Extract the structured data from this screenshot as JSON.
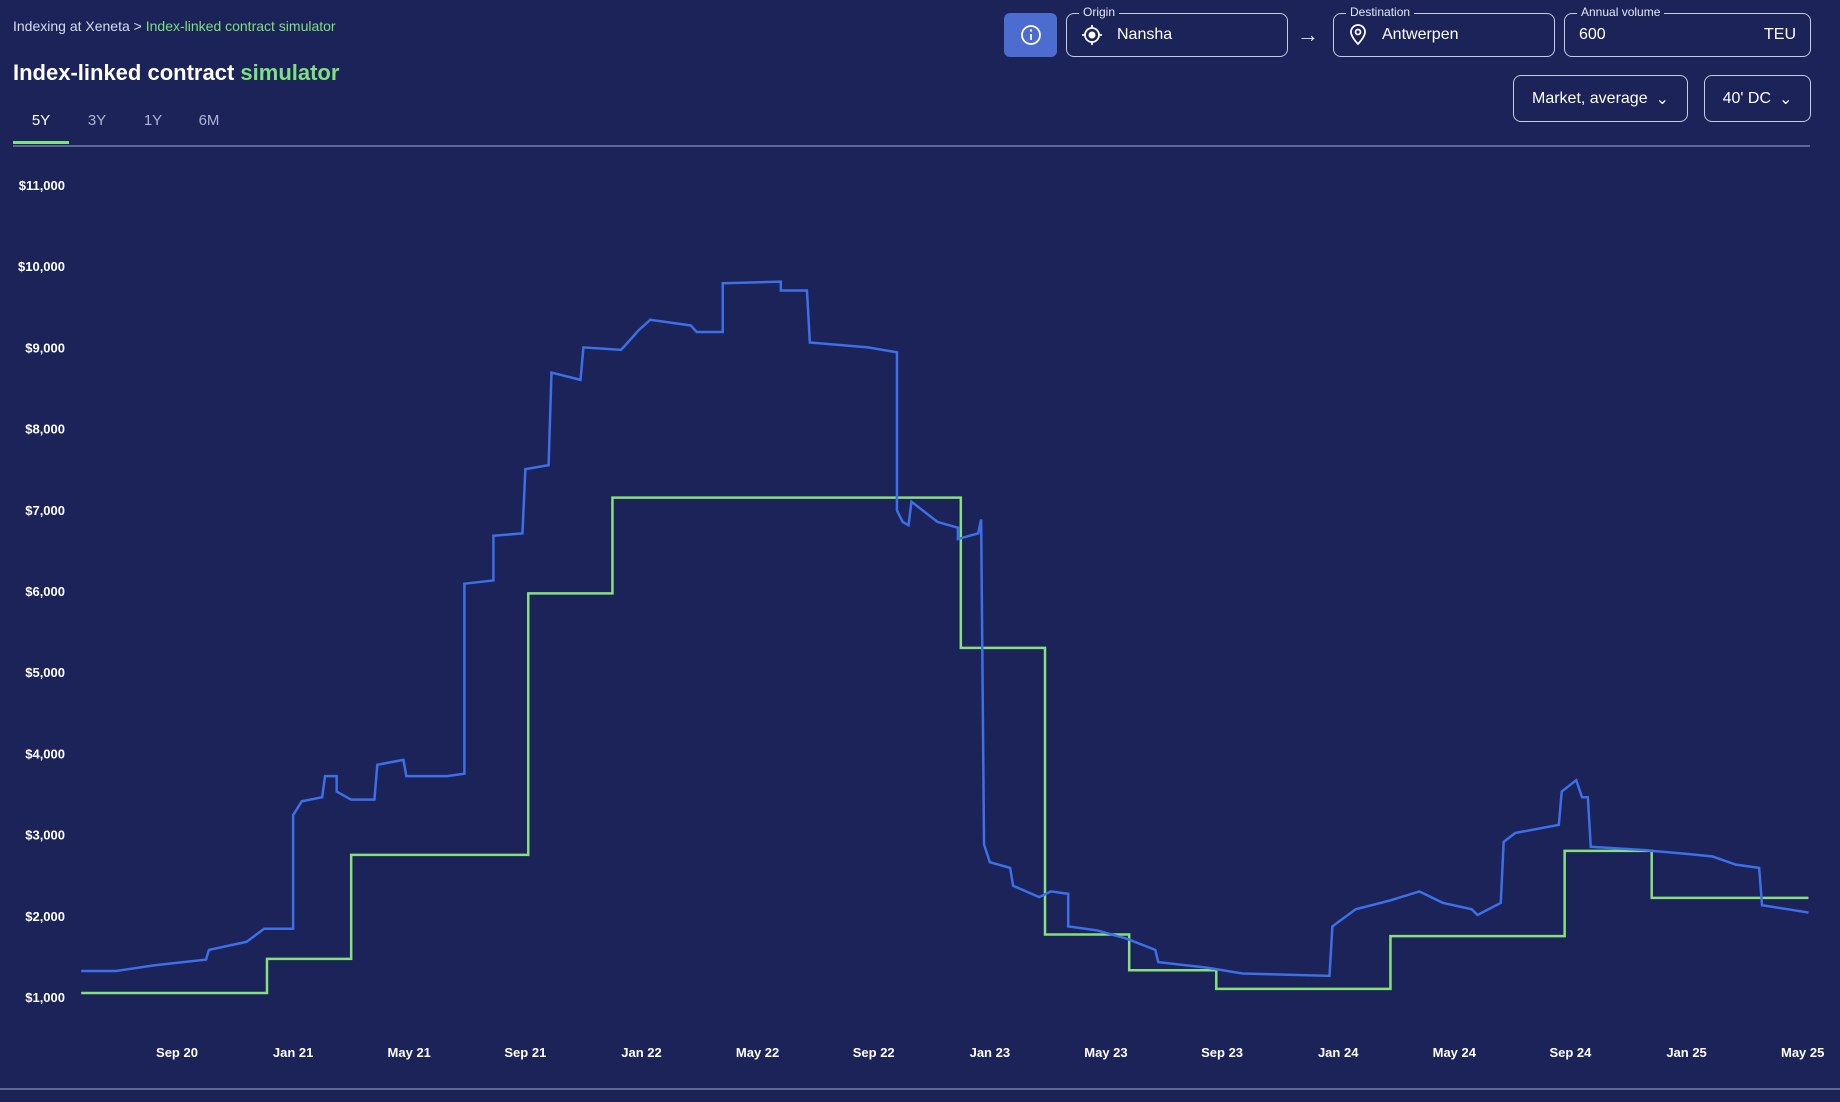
{
  "breadcrumb": {
    "parent": "Indexing at Xeneta",
    "separator": ">",
    "current": "Index-linked contract simulator"
  },
  "title": {
    "main": "Index-linked contract",
    "accent": "simulator"
  },
  "tabs": [
    {
      "label": "5Y"
    },
    {
      "label": "3Y"
    },
    {
      "label": "1Y"
    },
    {
      "label": "6M"
    }
  ],
  "filters": {
    "origin": {
      "label": "Origin",
      "value": "Nansha"
    },
    "destination": {
      "label": "Destination",
      "value": "Antwerpen"
    },
    "volume": {
      "label": "Annual volume",
      "value": "600",
      "unit": "TEU"
    },
    "rate_type": "Market, average",
    "container": "40' DC"
  },
  "colors": {
    "market": "#3d6fe6",
    "contract": "#86e07c",
    "background": "#1b2358"
  },
  "chart_data": {
    "type": "line",
    "x_unit": "months since Sep 2020",
    "xlim": [
      -3.3,
      56.2
    ],
    "ylim": [
      1000,
      11000
    ],
    "yticks": [
      1000,
      2000,
      3000,
      4000,
      5000,
      6000,
      7000,
      8000,
      9000,
      10000,
      11000
    ],
    "ytick_labels": [
      "$1,000",
      "$2,000",
      "$3,000",
      "$4,000",
      "$5,000",
      "$6,000",
      "$7,000",
      "$8,000",
      "$9,000",
      "$10,000",
      "$11,000"
    ],
    "xticks": [
      0,
      4,
      8,
      12,
      16,
      20,
      24,
      28,
      32,
      36,
      40,
      44,
      48,
      52,
      56
    ],
    "xtick_labels": [
      "Sep 20",
      "Jan 21",
      "May 21",
      "Sep 21",
      "Jan 22",
      "May 22",
      "Sep 22",
      "Jan 23",
      "May 23",
      "Sep 23",
      "Jan 24",
      "May 24",
      "Sep 24",
      "Jan 25",
      "May 25"
    ],
    "grid": false,
    "series": [
      {
        "name": "Market, average",
        "color": "#3d6fe6",
        "points": [
          [
            -3.3,
            1320
          ],
          [
            -2.1,
            1320
          ],
          [
            -0.8,
            1390
          ],
          [
            1.0,
            1460
          ],
          [
            1.1,
            1580
          ],
          [
            2.4,
            1680
          ],
          [
            3.0,
            1840
          ],
          [
            4.0,
            1840
          ],
          [
            4.0,
            3240
          ],
          [
            4.3,
            3410
          ],
          [
            5.0,
            3460
          ],
          [
            5.1,
            3720
          ],
          [
            5.5,
            3720
          ],
          [
            5.5,
            3530
          ],
          [
            6.0,
            3430
          ],
          [
            6.8,
            3430
          ],
          [
            6.9,
            3860
          ],
          [
            7.8,
            3920
          ],
          [
            7.9,
            3720
          ],
          [
            9.3,
            3720
          ],
          [
            9.9,
            3750
          ],
          [
            9.9,
            6090
          ],
          [
            10.9,
            6130
          ],
          [
            10.9,
            6680
          ],
          [
            11.9,
            6710
          ],
          [
            12.0,
            7500
          ],
          [
            12.8,
            7550
          ],
          [
            12.9,
            8690
          ],
          [
            13.9,
            8600
          ],
          [
            14.0,
            9000
          ],
          [
            15.3,
            8970
          ],
          [
            15.9,
            9210
          ],
          [
            16.3,
            9340
          ],
          [
            17.7,
            9270
          ],
          [
            17.9,
            9190
          ],
          [
            18.8,
            9190
          ],
          [
            18.8,
            9790
          ],
          [
            19.8,
            9800
          ],
          [
            20.8,
            9810
          ],
          [
            20.8,
            9700
          ],
          [
            21.7,
            9700
          ],
          [
            21.8,
            9060
          ],
          [
            23.8,
            9000
          ],
          [
            24.8,
            8940
          ],
          [
            24.8,
            6990
          ],
          [
            25.0,
            6850
          ],
          [
            25.2,
            6810
          ],
          [
            25.3,
            7100
          ],
          [
            26.2,
            6850
          ],
          [
            26.9,
            6780
          ],
          [
            26.9,
            6640
          ],
          [
            27.6,
            6710
          ],
          [
            27.7,
            6880
          ],
          [
            27.8,
            2880
          ],
          [
            28.0,
            2660
          ],
          [
            28.7,
            2590
          ],
          [
            28.8,
            2370
          ],
          [
            29.7,
            2230
          ],
          [
            30.1,
            2300
          ],
          [
            30.7,
            2270
          ],
          [
            30.7,
            1870
          ],
          [
            31.7,
            1820
          ],
          [
            32.7,
            1720
          ],
          [
            33.7,
            1580
          ],
          [
            33.8,
            1430
          ],
          [
            35.5,
            1360
          ],
          [
            36.7,
            1290
          ],
          [
            39.7,
            1260
          ],
          [
            39.8,
            1870
          ],
          [
            40.6,
            2080
          ],
          [
            41.8,
            2190
          ],
          [
            42.8,
            2300
          ],
          [
            43.6,
            2160
          ],
          [
            44.6,
            2080
          ],
          [
            44.8,
            2010
          ],
          [
            45.6,
            2160
          ],
          [
            45.7,
            2910
          ],
          [
            46.1,
            3020
          ],
          [
            47.6,
            3120
          ],
          [
            47.7,
            3530
          ],
          [
            48.2,
            3670
          ],
          [
            48.4,
            3460
          ],
          [
            48.6,
            3460
          ],
          [
            48.7,
            2850
          ],
          [
            50.5,
            2810
          ],
          [
            52.1,
            2760
          ],
          [
            52.9,
            2730
          ],
          [
            53.7,
            2630
          ],
          [
            54.5,
            2590
          ],
          [
            54.6,
            2130
          ],
          [
            55.5,
            2080
          ],
          [
            56.2,
            2040
          ]
        ]
      },
      {
        "name": "Index-linked contract",
        "color": "#86e07c",
        "steps": [
          [
            -3.3,
            1050
          ],
          [
            3.1,
            1470
          ],
          [
            6.0,
            2750
          ],
          [
            12.1,
            5970
          ],
          [
            15.0,
            7150
          ],
          [
            27.0,
            5300
          ],
          [
            29.9,
            1770
          ],
          [
            32.8,
            1330
          ],
          [
            35.8,
            1100
          ],
          [
            41.8,
            1750
          ],
          [
            47.8,
            2800
          ],
          [
            50.8,
            2220
          ]
        ],
        "end": 56.2
      }
    ]
  }
}
